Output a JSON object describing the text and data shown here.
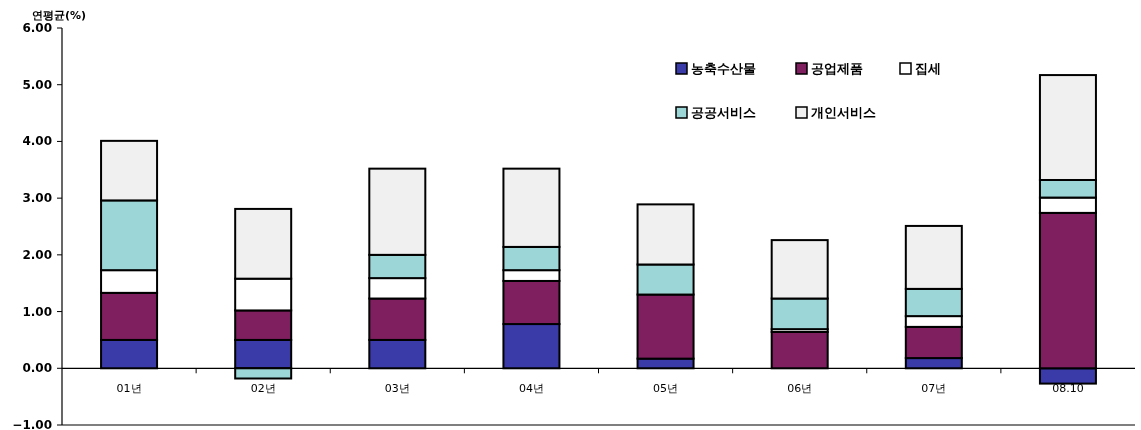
{
  "chart_data": {
    "type": "bar",
    "stacked": true,
    "ylabel": "연평균(%)",
    "categories": [
      "01년",
      "02년",
      "03년",
      "04년",
      "05년",
      "06년",
      "07년",
      "08.10"
    ],
    "series": [
      {
        "name": "농축수산물",
        "color": "#3a3aa8",
        "values": [
          0.5,
          0.5,
          0.5,
          0.78,
          0.17,
          0,
          0.18,
          -0.27
        ]
      },
      {
        "name": "공업제품",
        "color": "#7f1f5f",
        "values": [
          0.83,
          0.52,
          0.73,
          0.76,
          1.13,
          0.64,
          0.55,
          2.74
        ]
      },
      {
        "name": "집세",
        "color": "#ffffff",
        "values": [
          0.4,
          0.56,
          0.36,
          0.19,
          0,
          0.05,
          0.19,
          0.27
        ]
      },
      {
        "name": "공공서비스",
        "color": "#9dd6d6",
        "values": [
          1.23,
          -0.18,
          0.41,
          0.41,
          0.53,
          0.54,
          0.48,
          0.31
        ]
      },
      {
        "name": "개인서비스",
        "color": "#f0f0f0",
        "values": [
          1.05,
          1.23,
          1.52,
          1.38,
          1.06,
          1.03,
          1.11,
          1.85
        ]
      }
    ],
    "ylim": [
      -1,
      6
    ],
    "yticks": [
      {
        "value": -1,
        "label": "−1.00"
      },
      {
        "value": 0,
        "label": "0.00"
      },
      {
        "value": 1,
        "label": "1.00"
      },
      {
        "value": 2,
        "label": "2.00"
      },
      {
        "value": 3,
        "label": "3.00"
      },
      {
        "value": 4,
        "label": "4.00"
      },
      {
        "value": 5,
        "label": "5.00"
      },
      {
        "value": 6,
        "label": "6.00"
      }
    ],
    "grid": false,
    "legend": "top right"
  }
}
